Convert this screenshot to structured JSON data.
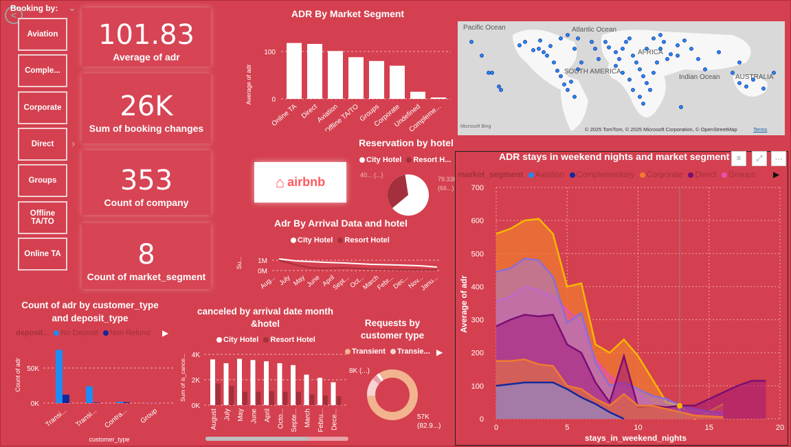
{
  "slicer": {
    "title": "Booking by:",
    "items": [
      "Aviation",
      "Comple...",
      "Corporate",
      "Direct",
      "Groups",
      "Offline TA/TO",
      "Online TA"
    ]
  },
  "kpis": [
    {
      "value": "101.83",
      "label": "Average of adr"
    },
    {
      "value": "26K",
      "label": "Sum of booking changes"
    },
    {
      "value": "353",
      "label": "Count of company"
    },
    {
      "value": "8",
      "label": "Count of market_segment"
    }
  ],
  "colors": {
    "background": "#d4404f",
    "card": "#d74454",
    "city": "#ffffff",
    "resort": "#a3303c",
    "aviation": "#1f8cf5",
    "complementary": "#13289a",
    "corporate": "#f07a30",
    "direct": "#7a0e73",
    "groups": "#e84fb0",
    "transient": "#f2b38f",
    "transient_party": "#f7d2d2"
  },
  "airbnb": {
    "label": "airbnb"
  },
  "map": {
    "labels": [
      "Pacific Ocean",
      "Atlantic Ocean",
      "AFRICA",
      "SOUTH AMERICA",
      "Indian Ocean",
      "AUSTRALIA"
    ],
    "footer": "© 2025 TomTom, © 2025 Microsoft Corporation, © OpenStreetMap",
    "terms": "Terms",
    "brand": "Microsoft Bing"
  },
  "adr_segment": {
    "title": "ADR By Market Segment",
    "ylabel": "Average of adr",
    "categories": [
      "Online TA",
      "Direct",
      "Aviation",
      "Offline TA/TO",
      "Groups",
      "Corporate",
      "Undefined",
      "Compleme..."
    ],
    "values": [
      118,
      116,
      101,
      88,
      80,
      70,
      15,
      3
    ],
    "ymax": 130,
    "ticks": [
      "100",
      "0"
    ]
  },
  "reservation": {
    "title": "Reservation by hotel",
    "legend": [
      "City Hotel",
      "Resort H..."
    ],
    "label_left": "40... (...)",
    "label_right": "79.33K (66...)",
    "values": [
      66.4,
      33.6
    ]
  },
  "adr_arrival": {
    "title": "Adr By Arrival Data and hotel",
    "legend": [
      "City Hotel",
      "Resort Hotel"
    ],
    "ylabel": "Su...",
    "ticks": [
      "1M",
      "0M"
    ],
    "categories": [
      "Aug...",
      "July",
      "May",
      "June",
      "April",
      "Sept...",
      "Oct...",
      "March",
      "Febr...",
      "Dec...",
      "Nov...",
      "Janu..."
    ]
  },
  "cust_deposit": {
    "title": "Count of adr by customer_type and deposit_type",
    "legend_title": "deposit...",
    "legend": [
      "No Deposit",
      "Non Refund"
    ],
    "ylabel": "Count of adr",
    "xlabel": "customer_type",
    "ticks": [
      "50K",
      "0K"
    ],
    "categories": [
      "Transi...",
      "Transi...",
      "Contra...",
      "Group"
    ],
    "no_deposit": [
      76000,
      24000,
      2000,
      300
    ],
    "non_refund": [
      12000,
      700,
      1200,
      100
    ],
    "ymax": 90000
  },
  "canceled": {
    "title": "canceled by arrival date month &hotel",
    "legend": [
      "City Hotel",
      "Resort Hotel"
    ],
    "ylabel": "Sum of is_cance...",
    "ticks": [
      "4K",
      "2K",
      "0K"
    ],
    "categories": [
      "August",
      "July",
      "May",
      "June",
      "April",
      "Octo...",
      "Septe...",
      "March",
      "Febru...",
      "Dece..."
    ],
    "city": [
      3600,
      3300,
      3650,
      3550,
      3450,
      3300,
      3150,
      2400,
      2150,
      1800
    ],
    "resort": [
      1700,
      1500,
      1050,
      1050,
      1100,
      1050,
      1050,
      850,
      750,
      700
    ],
    "ymax": 4300
  },
  "requests": {
    "title": "Requests by customer type",
    "legend": [
      "Transient",
      "Transie..."
    ],
    "label_top": "8K (...)",
    "label_bottom": "57K (82.9...)",
    "values": [
      82.9,
      11.6,
      3.5,
      2.0
    ]
  },
  "weekend": {
    "title": "ADR stays in weekend nights and market segment",
    "legend_title": "market_segment",
    "legend": [
      "Aviation",
      "Complementary",
      "Corporate",
      "Direct",
      "Groups"
    ],
    "xlabel": "stays_in_weekend_nights",
    "ylabel": "Average of adr",
    "xticks": [
      "0",
      "5",
      "10",
      "15",
      "20"
    ],
    "yticks": [
      "700",
      "600",
      "500",
      "400",
      "300",
      "200",
      "100",
      "0"
    ],
    "xmax": 20,
    "ymax": 700,
    "series": [
      {
        "name": "Orange-gold",
        "x": [
          0,
          1,
          2,
          3,
          4,
          5,
          6,
          7,
          8,
          9,
          10,
          12,
          13,
          14,
          16
        ],
        "y": [
          560,
          575,
          600,
          605,
          560,
          400,
          410,
          225,
          200,
          240,
          190,
          50,
          40,
          0,
          45
        ]
      },
      {
        "name": "Groups",
        "x": [
          0,
          1,
          2,
          3,
          4,
          5,
          6,
          7,
          8,
          9,
          10,
          11,
          12,
          16
        ],
        "y": [
          355,
          370,
          400,
          390,
          370,
          330,
          290,
          180,
          130,
          100,
          80,
          40,
          30,
          20
        ]
      },
      {
        "name": "Aviation",
        "x": [
          0,
          1,
          2,
          3,
          4,
          5,
          6,
          7,
          8,
          9,
          10,
          11,
          12,
          13,
          14,
          16
        ],
        "y": [
          445,
          455,
          485,
          480,
          430,
          290,
          320,
          170,
          100,
          110,
          90,
          70,
          60,
          40,
          30,
          15
        ]
      },
      {
        "name": "Direct",
        "x": [
          0,
          1,
          2,
          3,
          4,
          5,
          6,
          7,
          8,
          9,
          10,
          11,
          12,
          13,
          14,
          15,
          16,
          17,
          18,
          19
        ],
        "y": [
          280,
          300,
          315,
          310,
          315,
          225,
          200,
          110,
          50,
          190,
          35,
          40,
          35,
          40,
          40,
          60,
          80,
          100,
          115,
          115
        ]
      },
      {
        "name": "Corporate",
        "x": [
          0,
          1,
          2,
          3,
          4,
          5,
          6,
          7,
          8,
          9,
          10,
          11,
          12,
          13,
          14,
          16
        ],
        "y": [
          175,
          175,
          180,
          165,
          160,
          100,
          90,
          60,
          40,
          75,
          40,
          40,
          30,
          20,
          10,
          5
        ]
      },
      {
        "name": "Complementary",
        "x": [
          0,
          1,
          2,
          3,
          4,
          5,
          6,
          7,
          8,
          9
        ],
        "y": [
          100,
          105,
          110,
          110,
          110,
          90,
          65,
          45,
          20,
          0
        ]
      }
    ]
  }
}
